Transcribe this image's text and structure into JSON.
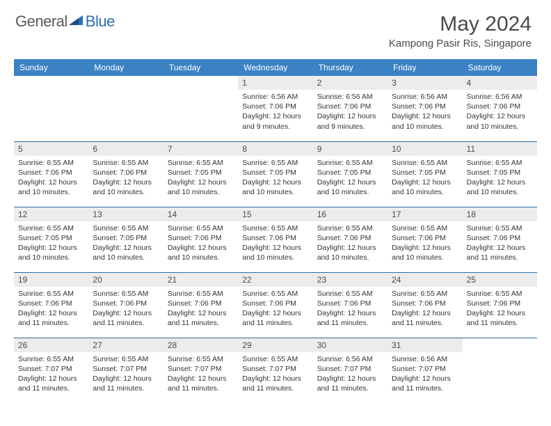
{
  "logo": {
    "text1": "General",
    "text2": "Blue"
  },
  "title": "May 2024",
  "location": "Kampong Pasir Ris, Singapore",
  "colors": {
    "header_bg": "#3b82c4",
    "header_fg": "#ffffff",
    "daynum_bg": "#ececec",
    "text": "#4a4a4a",
    "row_border": "#2e6da4"
  },
  "day_headers": [
    "Sunday",
    "Monday",
    "Tuesday",
    "Wednesday",
    "Thursday",
    "Friday",
    "Saturday"
  ],
  "weeks": [
    [
      {
        "n": "",
        "sr": "",
        "ss": "",
        "dl": ""
      },
      {
        "n": "",
        "sr": "",
        "ss": "",
        "dl": ""
      },
      {
        "n": "",
        "sr": "",
        "ss": "",
        "dl": ""
      },
      {
        "n": "1",
        "sr": "6:56 AM",
        "ss": "7:06 PM",
        "dl": "12 hours and 9 minutes."
      },
      {
        "n": "2",
        "sr": "6:56 AM",
        "ss": "7:06 PM",
        "dl": "12 hours and 9 minutes."
      },
      {
        "n": "3",
        "sr": "6:56 AM",
        "ss": "7:06 PM",
        "dl": "12 hours and 10 minutes."
      },
      {
        "n": "4",
        "sr": "6:56 AM",
        "ss": "7:06 PM",
        "dl": "12 hours and 10 minutes."
      }
    ],
    [
      {
        "n": "5",
        "sr": "6:55 AM",
        "ss": "7:06 PM",
        "dl": "12 hours and 10 minutes."
      },
      {
        "n": "6",
        "sr": "6:55 AM",
        "ss": "7:06 PM",
        "dl": "12 hours and 10 minutes."
      },
      {
        "n": "7",
        "sr": "6:55 AM",
        "ss": "7:05 PM",
        "dl": "12 hours and 10 minutes."
      },
      {
        "n": "8",
        "sr": "6:55 AM",
        "ss": "7:05 PM",
        "dl": "12 hours and 10 minutes."
      },
      {
        "n": "9",
        "sr": "6:55 AM",
        "ss": "7:05 PM",
        "dl": "12 hours and 10 minutes."
      },
      {
        "n": "10",
        "sr": "6:55 AM",
        "ss": "7:05 PM",
        "dl": "12 hours and 10 minutes."
      },
      {
        "n": "11",
        "sr": "6:55 AM",
        "ss": "7:05 PM",
        "dl": "12 hours and 10 minutes."
      }
    ],
    [
      {
        "n": "12",
        "sr": "6:55 AM",
        "ss": "7:05 PM",
        "dl": "12 hours and 10 minutes."
      },
      {
        "n": "13",
        "sr": "6:55 AM",
        "ss": "7:05 PM",
        "dl": "12 hours and 10 minutes."
      },
      {
        "n": "14",
        "sr": "6:55 AM",
        "ss": "7:06 PM",
        "dl": "12 hours and 10 minutes."
      },
      {
        "n": "15",
        "sr": "6:55 AM",
        "ss": "7:06 PM",
        "dl": "12 hours and 10 minutes."
      },
      {
        "n": "16",
        "sr": "6:55 AM",
        "ss": "7:06 PM",
        "dl": "12 hours and 10 minutes."
      },
      {
        "n": "17",
        "sr": "6:55 AM",
        "ss": "7:06 PM",
        "dl": "12 hours and 10 minutes."
      },
      {
        "n": "18",
        "sr": "6:55 AM",
        "ss": "7:06 PM",
        "dl": "12 hours and 11 minutes."
      }
    ],
    [
      {
        "n": "19",
        "sr": "6:55 AM",
        "ss": "7:06 PM",
        "dl": "12 hours and 11 minutes."
      },
      {
        "n": "20",
        "sr": "6:55 AM",
        "ss": "7:06 PM",
        "dl": "12 hours and 11 minutes."
      },
      {
        "n": "21",
        "sr": "6:55 AM",
        "ss": "7:06 PM",
        "dl": "12 hours and 11 minutes."
      },
      {
        "n": "22",
        "sr": "6:55 AM",
        "ss": "7:06 PM",
        "dl": "12 hours and 11 minutes."
      },
      {
        "n": "23",
        "sr": "6:55 AM",
        "ss": "7:06 PM",
        "dl": "12 hours and 11 minutes."
      },
      {
        "n": "24",
        "sr": "6:55 AM",
        "ss": "7:06 PM",
        "dl": "12 hours and 11 minutes."
      },
      {
        "n": "25",
        "sr": "6:55 AM",
        "ss": "7:06 PM",
        "dl": "12 hours and 11 minutes."
      }
    ],
    [
      {
        "n": "26",
        "sr": "6:55 AM",
        "ss": "7:07 PM",
        "dl": "12 hours and 11 minutes."
      },
      {
        "n": "27",
        "sr": "6:55 AM",
        "ss": "7:07 PM",
        "dl": "12 hours and 11 minutes."
      },
      {
        "n": "28",
        "sr": "6:55 AM",
        "ss": "7:07 PM",
        "dl": "12 hours and 11 minutes."
      },
      {
        "n": "29",
        "sr": "6:55 AM",
        "ss": "7:07 PM",
        "dl": "12 hours and 11 minutes."
      },
      {
        "n": "30",
        "sr": "6:56 AM",
        "ss": "7:07 PM",
        "dl": "12 hours and 11 minutes."
      },
      {
        "n": "31",
        "sr": "6:56 AM",
        "ss": "7:07 PM",
        "dl": "12 hours and 11 minutes."
      },
      {
        "n": "",
        "sr": "",
        "ss": "",
        "dl": ""
      }
    ]
  ],
  "labels": {
    "sunrise": "Sunrise:",
    "sunset": "Sunset:",
    "daylight": "Daylight:"
  }
}
